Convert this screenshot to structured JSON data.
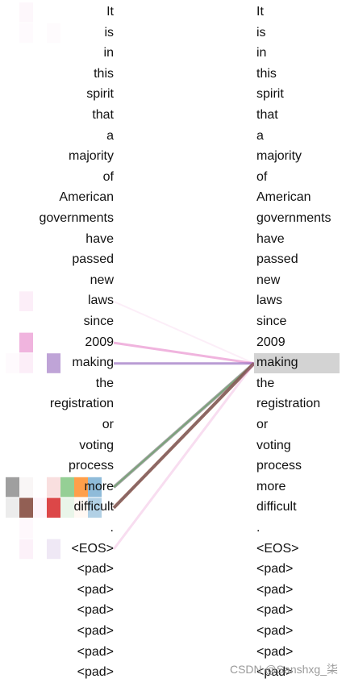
{
  "left_tokens": [
    "It",
    "is",
    "in",
    "this",
    "spirit",
    "that",
    "a",
    "majority",
    "of",
    "American",
    "governments",
    "have",
    "passed",
    "new",
    "laws",
    "since",
    "2009",
    "making",
    "the",
    "registration",
    "or",
    "voting",
    "process",
    "more",
    "difficult",
    ".",
    "<EOS>",
    "<pad>",
    "<pad>",
    "<pad>",
    "<pad>",
    "<pad>",
    "<pad>"
  ],
  "right_tokens": [
    "It",
    "is",
    "in",
    "this",
    "spirit",
    "that",
    "a",
    "majority",
    "of",
    "American",
    "governments",
    "have",
    "passed",
    "new",
    "laws",
    "since",
    "2009",
    "making",
    "the",
    "registration",
    "or",
    "voting",
    "process",
    "more",
    "difficult",
    ".",
    "<EOS>",
    "<pad>",
    "<pad>",
    "<pad>",
    "<pad>",
    "<pad>",
    "<pad>"
  ],
  "selected_index": 17,
  "head_colors": [
    "#7f7f7f",
    "#8c564b",
    "#e377c2",
    "#d62728",
    "#ff7f0e",
    "#2ca02c",
    "#1f77b4"
  ],
  "attention_cells": [
    {
      "row": 0,
      "col": 1,
      "color": "#e377c2",
      "alpha": 0.06
    },
    {
      "row": 1,
      "col": 1,
      "color": "#e377c2",
      "alpha": 0.04
    },
    {
      "row": 1,
      "col": 3,
      "color": "#e377c2",
      "alpha": 0.03
    },
    {
      "row": 14,
      "col": 1,
      "color": "#e377c2",
      "alpha": 0.12
    },
    {
      "row": 16,
      "col": 1,
      "color": "#e377c2",
      "alpha": 0.55
    },
    {
      "row": 17,
      "col": 0,
      "color": "#e377c2",
      "alpha": 0.04
    },
    {
      "row": 17,
      "col": 1,
      "color": "#e377c2",
      "alpha": 0.12
    },
    {
      "row": 17,
      "col": 3,
      "color": "#9467bd",
      "alpha": 0.6
    },
    {
      "row": 23,
      "col": 0,
      "color": "#7f7f7f",
      "alpha": 0.75
    },
    {
      "row": 23,
      "col": 1,
      "color": "#8c564b",
      "alpha": 0.05
    },
    {
      "row": 23,
      "col": 3,
      "color": "#d62728",
      "alpha": 0.15
    },
    {
      "row": 23,
      "col": 4,
      "color": "#2ca02c",
      "alpha": 0.5
    },
    {
      "row": 23,
      "col": 5,
      "color": "#ff7f0e",
      "alpha": 0.75
    },
    {
      "row": 23,
      "col": 6,
      "color": "#1f77b4",
      "alpha": 0.5
    },
    {
      "row": 24,
      "col": 0,
      "color": "#7f7f7f",
      "alpha": 0.15
    },
    {
      "row": 24,
      "col": 1,
      "color": "#8c564b",
      "alpha": 0.95
    },
    {
      "row": 24,
      "col": 2,
      "color": "#e377c2",
      "alpha": 0.08
    },
    {
      "row": 24,
      "col": 3,
      "color": "#d62728",
      "alpha": 0.85
    },
    {
      "row": 24,
      "col": 4,
      "color": "#2ca02c",
      "alpha": 0.1
    },
    {
      "row": 24,
      "col": 5,
      "color": "#ff7f0e",
      "alpha": 0.05
    },
    {
      "row": 24,
      "col": 6,
      "color": "#1f77b4",
      "alpha": 0.35
    },
    {
      "row": 25,
      "col": 1,
      "color": "#e377c2",
      "alpha": 0.05
    },
    {
      "row": 26,
      "col": 1,
      "color": "#e377c2",
      "alpha": 0.1
    },
    {
      "row": 26,
      "col": 3,
      "color": "#9467bd",
      "alpha": 0.15
    }
  ],
  "attention_lines": [
    {
      "from": 14,
      "color": "#e377c2",
      "alpha": 0.12,
      "width": 2
    },
    {
      "from": 16,
      "color": "#e377c2",
      "alpha": 0.55,
      "width": 3
    },
    {
      "from": 17,
      "color": "#9467bd",
      "alpha": 0.65,
      "width": 3
    },
    {
      "from": 23,
      "color": "#7f7f7f",
      "alpha": 0.7,
      "width": 4
    },
    {
      "from": 23,
      "color": "#2ca02c",
      "alpha": 0.35,
      "width": 2
    },
    {
      "from": 24,
      "color": "#8c564b",
      "alpha": 0.9,
      "width": 4
    },
    {
      "from": 24,
      "color": "#1f77b4",
      "alpha": 0.12,
      "width": 2
    },
    {
      "from": 26,
      "color": "#e377c2",
      "alpha": 0.25,
      "width": 3
    }
  ],
  "watermark": "CSDN @Sanshxg_柒"
}
